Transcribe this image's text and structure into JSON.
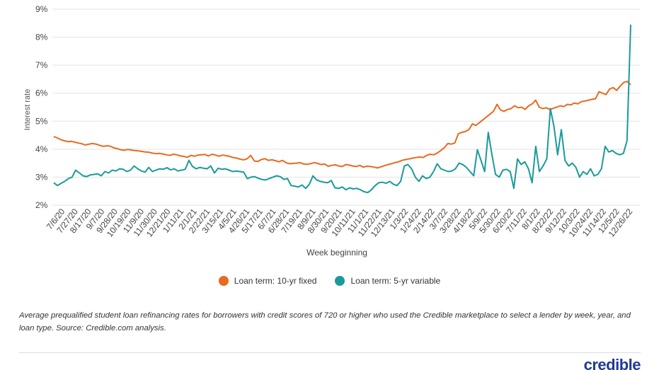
{
  "chart_data": {
    "type": "line",
    "xlabel": "Week beginning",
    "ylabel": "Interest rate",
    "ylim": [
      2,
      9
    ],
    "yticks": [
      "2%",
      "3%",
      "4%",
      "5%",
      "6%",
      "7%",
      "8%",
      "9%"
    ],
    "grid": true,
    "legend_position": "bottom-center",
    "x_tick_labels": [
      "7/6/20",
      "7/27/20",
      "8/17/20",
      "9/7/20",
      "9/28/20",
      "10/19/20",
      "11/9/20",
      "11/30/20",
      "12/21/20",
      "1/11/21",
      "2/1/21",
      "2/22/21",
      "3/15/21",
      "4/5/21",
      "4/26/21",
      "5/17/21",
      "6/7/21",
      "6/28/21",
      "7/19/21",
      "8/9/21",
      "8/30/21",
      "9/20/21",
      "10/11/21",
      "11/1/21",
      "11/22/21",
      "12/13/21",
      "1/3/22",
      "1/24/22",
      "2/14/22",
      "3/7/22",
      "3/28/22",
      "4/18/22",
      "5/9/22",
      "5/30/22",
      "6/20/22",
      "7/11/22",
      "8/1/22",
      "8/22/22",
      "9/12/22",
      "10/3/22",
      "10/24/22",
      "11/14/22",
      "12/5/22",
      "12/26/22"
    ],
    "series": [
      {
        "name": "Loan term: 10-yr fixed",
        "color": "#e8691f",
        "values": [
          4.45,
          4.4,
          4.34,
          4.3,
          4.27,
          4.28,
          4.25,
          4.22,
          4.19,
          4.15,
          4.18,
          4.2,
          4.18,
          4.14,
          4.1,
          4.12,
          4.11,
          4.05,
          4.02,
          3.98,
          3.96,
          3.99,
          3.97,
          3.95,
          3.94,
          3.92,
          3.9,
          3.89,
          3.86,
          3.84,
          3.85,
          3.83,
          3.8,
          3.78,
          3.82,
          3.8,
          3.76,
          3.74,
          3.71,
          3.78,
          3.75,
          3.79,
          3.8,
          3.81,
          3.76,
          3.82,
          3.79,
          3.75,
          3.79,
          3.77,
          3.74,
          3.7,
          3.68,
          3.64,
          3.62,
          3.66,
          3.78,
          3.58,
          3.56,
          3.63,
          3.66,
          3.6,
          3.62,
          3.59,
          3.55,
          3.6,
          3.52,
          3.48,
          3.49,
          3.5,
          3.52,
          3.47,
          3.46,
          3.48,
          3.52,
          3.49,
          3.45,
          3.47,
          3.39,
          3.42,
          3.44,
          3.4,
          3.38,
          3.45,
          3.43,
          3.4,
          3.38,
          3.42,
          3.36,
          3.39,
          3.38,
          3.36,
          3.33,
          3.37,
          3.41,
          3.45,
          3.48,
          3.52,
          3.55,
          3.6,
          3.63,
          3.65,
          3.68,
          3.7,
          3.72,
          3.7,
          3.78,
          3.82,
          3.8,
          3.86,
          3.95,
          4.05,
          4.2,
          4.18,
          4.22,
          4.55,
          4.6,
          4.63,
          4.7,
          4.9,
          4.85,
          4.95,
          5.05,
          5.15,
          5.25,
          5.35,
          5.6,
          5.4,
          5.35,
          5.42,
          5.45,
          5.55,
          5.48,
          5.5,
          5.42,
          5.55,
          5.62,
          5.75,
          5.5,
          5.45,
          5.48,
          5.42,
          5.46,
          5.5,
          5.55,
          5.52,
          5.6,
          5.58,
          5.65,
          5.62,
          5.7,
          5.72,
          5.75,
          5.78,
          5.8,
          6.05,
          6.0,
          5.95,
          6.15,
          6.2,
          6.1,
          6.25,
          6.38,
          6.42,
          6.3
        ]
      },
      {
        "name": "Loan term: 5-yr variable",
        "color": "#1a9a9a",
        "values": [
          2.8,
          2.7,
          2.78,
          2.85,
          2.95,
          3.0,
          3.25,
          3.15,
          3.05,
          3.02,
          3.08,
          3.1,
          3.12,
          3.05,
          3.2,
          3.15,
          3.25,
          3.22,
          3.3,
          3.28,
          3.2,
          3.25,
          3.4,
          3.3,
          3.22,
          3.18,
          3.35,
          3.2,
          3.25,
          3.3,
          3.28,
          3.34,
          3.26,
          3.3,
          3.22,
          3.25,
          3.28,
          3.6,
          3.38,
          3.3,
          3.35,
          3.32,
          3.3,
          3.4,
          3.15,
          3.32,
          3.28,
          3.3,
          3.25,
          3.2,
          3.22,
          3.2,
          3.18,
          2.95,
          3.0,
          3.02,
          2.96,
          2.92,
          2.9,
          2.95,
          3.0,
          3.05,
          3.02,
          2.92,
          2.95,
          2.7,
          2.68,
          2.65,
          2.72,
          2.6,
          2.75,
          3.05,
          2.9,
          2.85,
          2.82,
          2.8,
          2.88,
          2.62,
          2.6,
          2.65,
          2.55,
          2.62,
          2.58,
          2.6,
          2.55,
          2.48,
          2.45,
          2.55,
          2.7,
          2.8,
          2.82,
          2.78,
          2.85,
          2.75,
          2.7,
          2.85,
          3.4,
          3.45,
          3.3,
          3.0,
          2.85,
          3.05,
          2.95,
          3.0,
          3.2,
          3.48,
          3.3,
          3.25,
          3.2,
          3.22,
          3.3,
          3.5,
          3.45,
          3.35,
          3.2,
          3.05,
          3.98,
          3.6,
          3.2,
          4.6,
          3.8,
          3.1,
          3.0,
          3.25,
          3.28,
          3.2,
          2.6,
          3.65,
          3.45,
          3.55,
          3.3,
          2.8,
          4.1,
          3.2,
          3.4,
          3.65,
          5.45,
          4.8,
          3.8,
          4.7,
          3.6,
          3.4,
          3.5,
          3.35,
          3.0,
          3.2,
          3.1,
          3.3,
          3.05,
          3.1,
          3.3,
          4.1,
          3.9,
          3.95,
          3.85,
          3.8,
          3.85,
          4.3,
          8.45
        ]
      }
    ]
  },
  "caption": "Average prequalified student loan refinancing rates for borrowers with credit scores of 720 or higher who used the Credible marketplace to select a lender by week, year, and loan type. Source: Credible.com analysis.",
  "logo_text": "credible"
}
